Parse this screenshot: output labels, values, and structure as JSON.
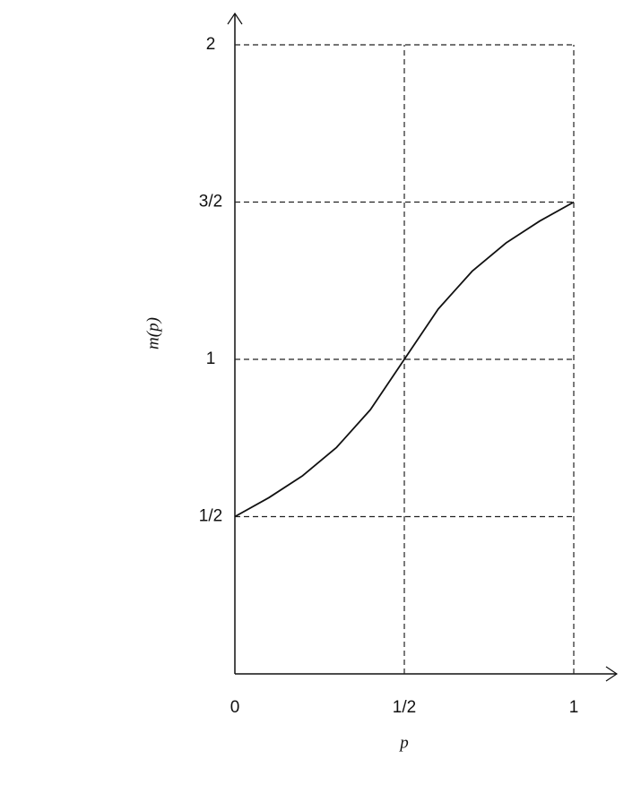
{
  "chart_data": {
    "type": "line",
    "x": [
      0,
      0.1,
      0.2,
      0.3,
      0.4,
      0.5,
      0.6,
      0.7,
      0.8,
      0.9,
      1
    ],
    "values": [
      0.5,
      0.56,
      0.63,
      0.72,
      0.84,
      1.0,
      1.16,
      1.28,
      1.37,
      1.44,
      1.5
    ],
    "color": "#111111",
    "xlim": [
      0,
      1
    ],
    "ylim": [
      0,
      2
    ],
    "xticks": [
      0,
      {
        "value": 0.5,
        "label": "1/2"
      },
      1
    ],
    "yticks": [
      {
        "value": 0.5,
        "label": "1/2"
      },
      1,
      {
        "value": 1.5,
        "label": "3/2"
      },
      2
    ],
    "grid": true,
    "xlabel": "p",
    "ylabel": "m(p)"
  }
}
